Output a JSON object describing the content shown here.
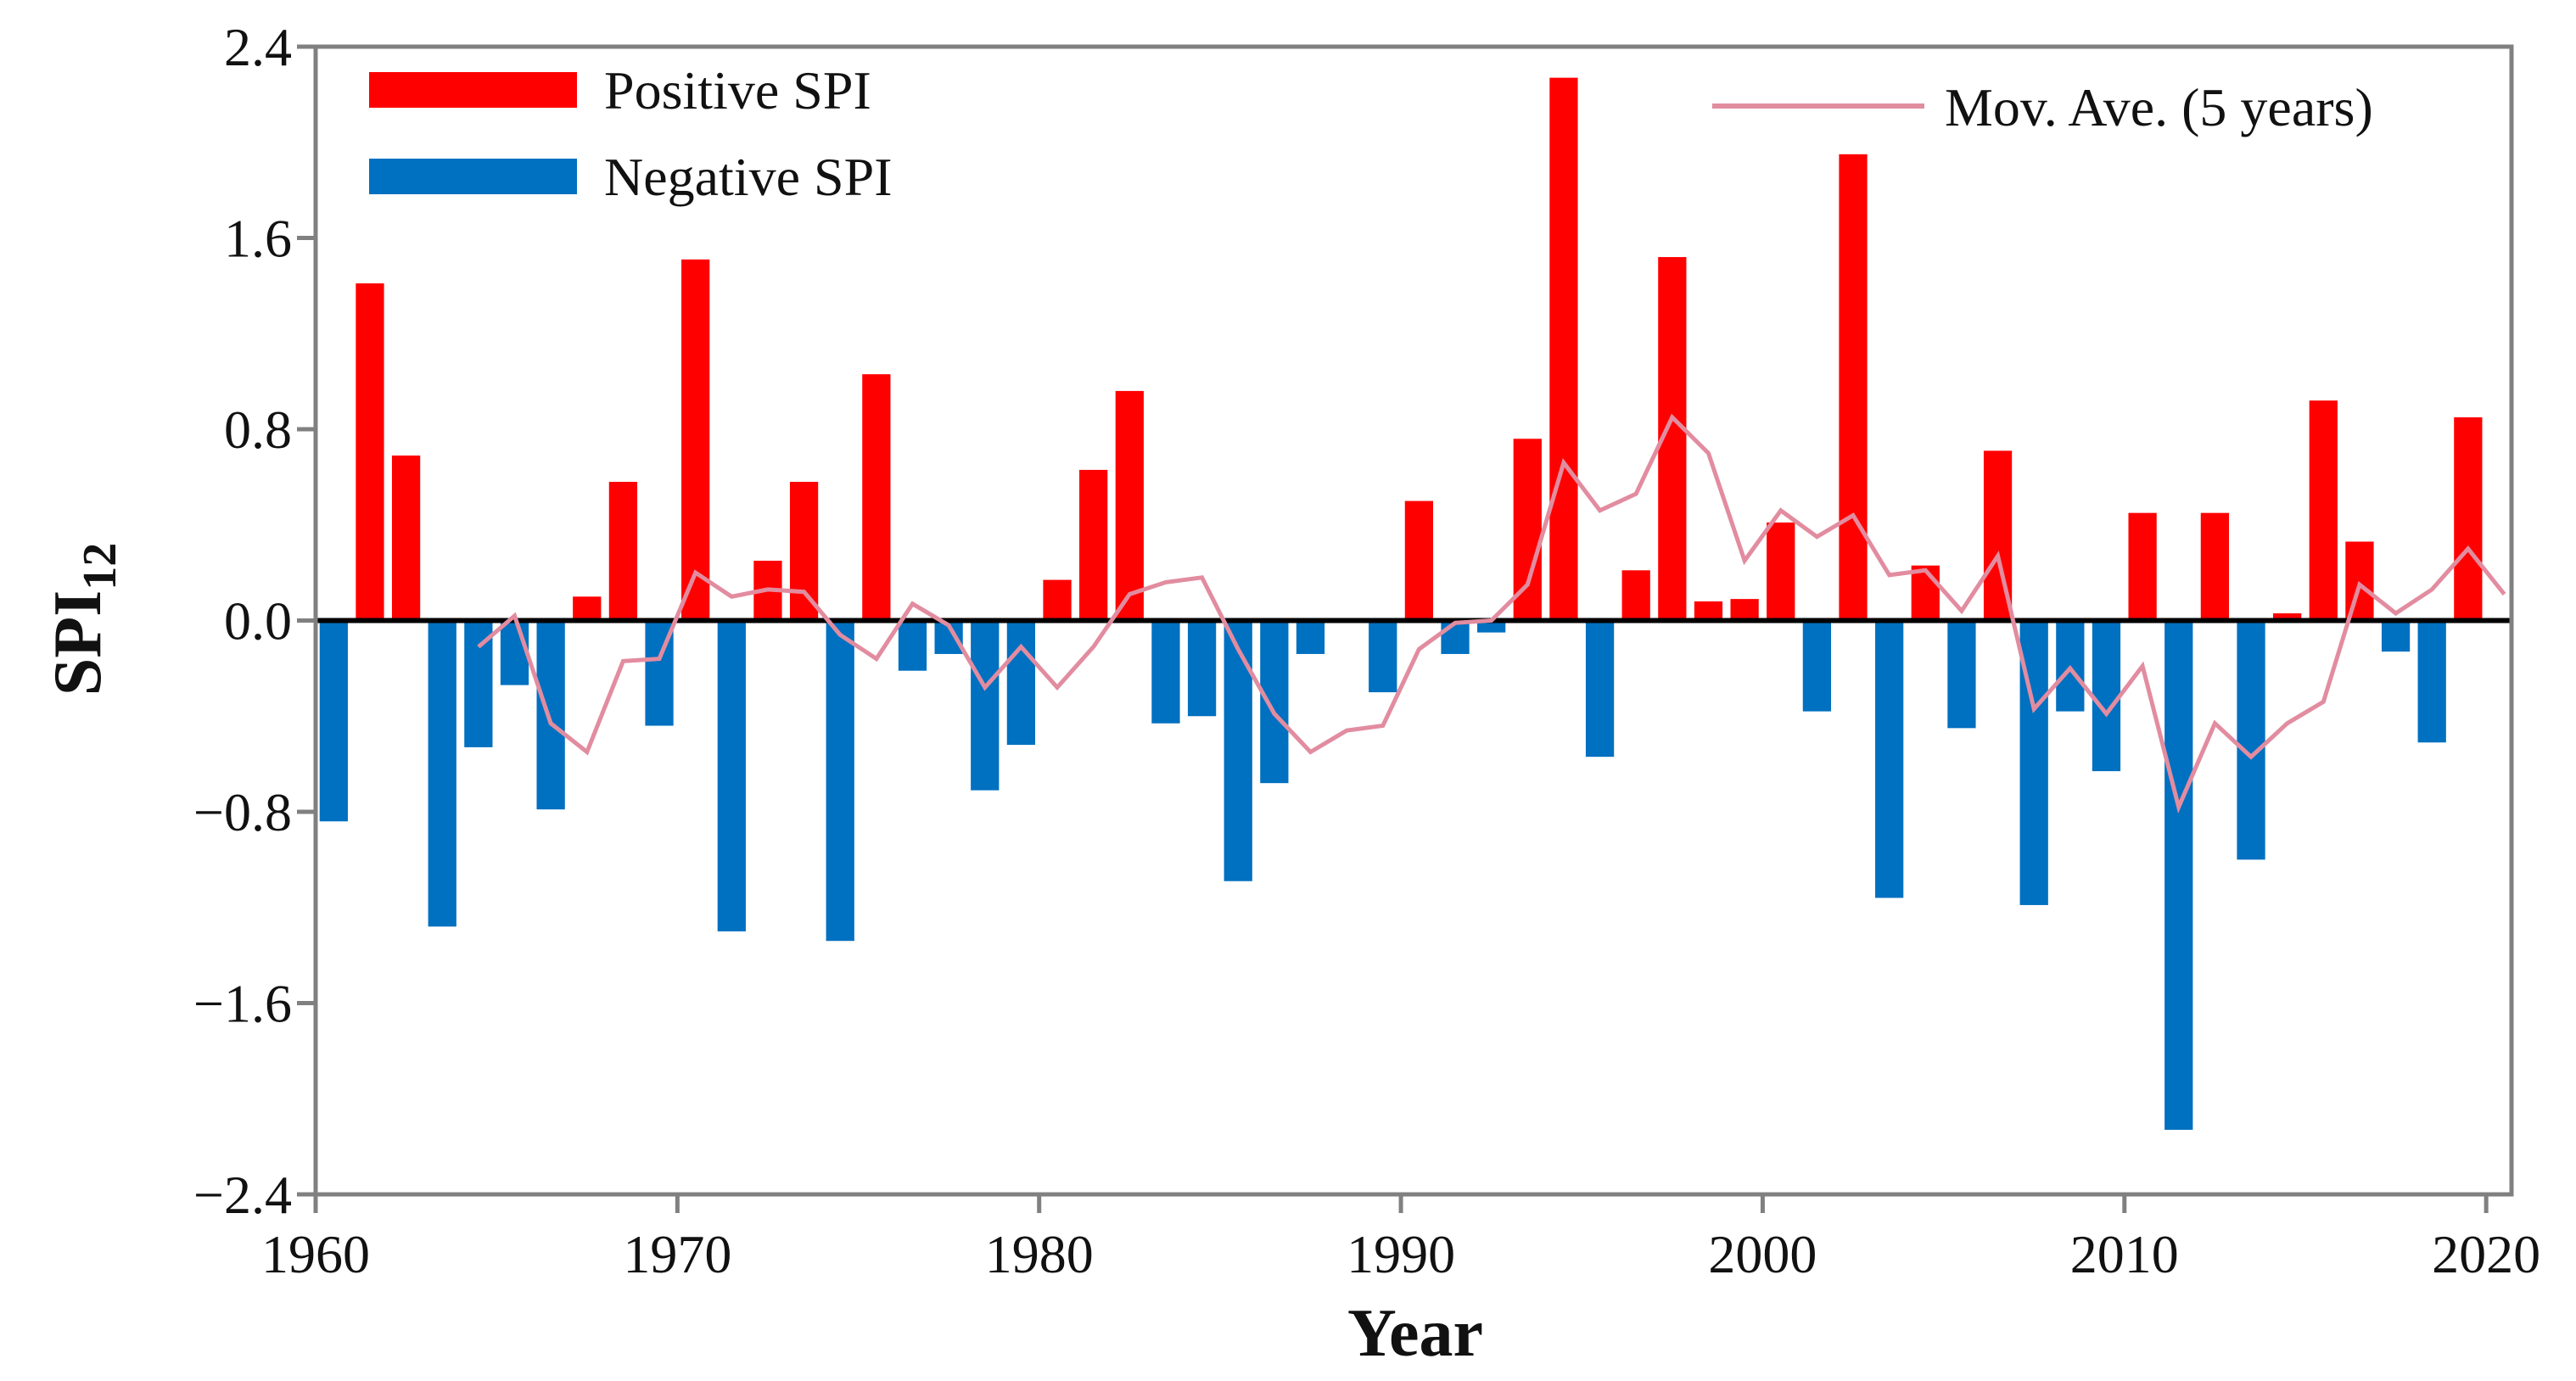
{
  "chart_data": {
    "type": "bar",
    "xlabel": "Year",
    "ylabel": "SPI",
    "ylabel_subscript": "12",
    "xlim": [
      1960,
      2020.7
    ],
    "ylim": [
      -2.4,
      2.4
    ],
    "x_ticks": [
      1960,
      1970,
      1980,
      1990,
      2000,
      2010,
      2020
    ],
    "y_ticks": [
      -2.4,
      -1.6,
      -0.8,
      0.0,
      0.8,
      1.6,
      2.4
    ],
    "y_tick_labels": [
      "−2.4",
      "−1.6",
      "−0.8",
      "0.0",
      "0.8",
      "1.6",
      "2.4"
    ],
    "grid": false,
    "colors": {
      "positive": "#ff0000",
      "negative": "#0070c0",
      "moving_average": "#e28ca0",
      "axis": "#808080",
      "zero_line": "#000000"
    },
    "legend": {
      "bars": [
        {
          "label": "Positive SPI",
          "color": "#ff0000"
        },
        {
          "label": "Negative SPI",
          "color": "#0070c0"
        }
      ],
      "line": {
        "label": "Mov. Ave. (5 years)",
        "color": "#e28ca0"
      }
    },
    "series": [
      {
        "name": "SPI",
        "x": [
          1960,
          1961,
          1962,
          1963,
          1964,
          1965,
          1966,
          1967,
          1968,
          1969,
          1970,
          1971,
          1972,
          1973,
          1974,
          1975,
          1976,
          1977,
          1978,
          1979,
          1980,
          1981,
          1982,
          1983,
          1984,
          1985,
          1986,
          1987,
          1988,
          1989,
          1990,
          1991,
          1992,
          1993,
          1994,
          1995,
          1996,
          1997,
          1998,
          1999,
          2000,
          2001,
          2002,
          2003,
          2004,
          2005,
          2006,
          2007,
          2008,
          2009,
          2010,
          2011,
          2012,
          2013,
          2014,
          2015,
          2016,
          2017,
          2018,
          2019,
          2020
        ],
        "values": [
          -0.84,
          1.41,
          0.69,
          -1.28,
          -0.53,
          -0.27,
          -0.79,
          0.1,
          0.58,
          -0.44,
          1.51,
          -1.3,
          0.25,
          0.58,
          -1.34,
          1.03,
          -0.21,
          -0.14,
          -0.71,
          -0.52,
          0.17,
          0.63,
          0.96,
          -0.43,
          -0.4,
          -1.09,
          -0.68,
          -0.14,
          0,
          -0.3,
          0.5,
          -0.14,
          -0.05,
          0.76,
          2.27,
          -0.57,
          0.21,
          1.52,
          0.08,
          0.09,
          0.41,
          -0.38,
          1.95,
          -1.16,
          0.23,
          -0.45,
          0.71,
          -1.19,
          -0.38,
          -0.63,
          0.45,
          -2.13,
          0.45,
          -1.0,
          0.03,
          0.92,
          0.33,
          -0.13,
          -0.51,
          0.85,
          0
        ]
      },
      {
        "name": "Mov. Ave. (5 years)",
        "x": [
          1964,
          1965,
          1966,
          1967,
          1968,
          1969,
          1970,
          1971,
          1972,
          1973,
          1974,
          1975,
          1976,
          1977,
          1978,
          1979,
          1980,
          1981,
          1982,
          1983,
          1984,
          1985,
          1986,
          1987,
          1988,
          1989,
          1990,
          1991,
          1992,
          1993,
          1994,
          1995,
          1996,
          1997,
          1998,
          1999,
          2000,
          2001,
          2002,
          2003,
          2004,
          2005,
          2006,
          2007,
          2008,
          2009,
          2010,
          2011,
          2012,
          2013,
          2014,
          2015,
          2016,
          2017,
          2018,
          2019,
          2020
        ],
        "values": [
          -0.11,
          0.02,
          -0.43,
          -0.55,
          -0.17,
          -0.16,
          0.2,
          0.1,
          0.13,
          0.12,
          -0.06,
          -0.16,
          0.07,
          -0.02,
          -0.28,
          -0.11,
          -0.28,
          -0.11,
          0.11,
          0.16,
          0.18,
          -0.12,
          -0.39,
          -0.55,
          -0.46,
          -0.44,
          -0.12,
          -0.01,
          0.0,
          0.15,
          0.66,
          0.46,
          0.53,
          0.85,
          0.7,
          0.25,
          0.46,
          0.35,
          0.44,
          0.19,
          0.21,
          0.04,
          0.27,
          -0.37,
          -0.2,
          -0.39,
          -0.19,
          -0.78,
          -0.43,
          -0.57,
          -0.43,
          -0.34,
          0.15,
          0.03,
          0.13,
          0.3,
          0.11
        ]
      }
    ]
  }
}
